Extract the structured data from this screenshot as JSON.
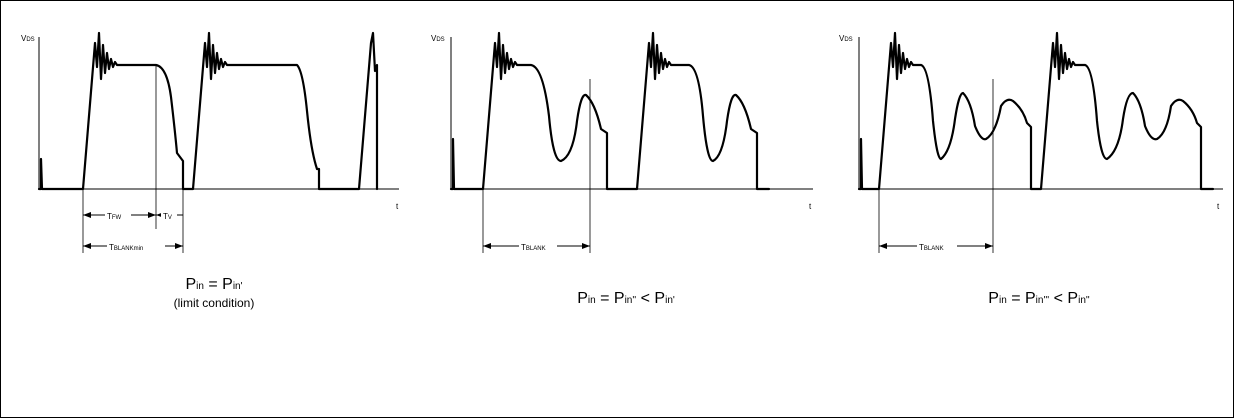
{
  "panels": [
    {
      "ylabel": {
        "main": "V",
        "sub": "DS"
      },
      "xlabel": "t",
      "dims": [
        {
          "main": "T",
          "sub": "FW"
        },
        {
          "main": "T",
          "sub": "V"
        },
        {
          "main": "T",
          "sub": "BLANKmin"
        }
      ],
      "caption": {
        "p1": "P",
        "s1": "in",
        "eq": " = ",
        "p2": "P",
        "s2": "in'",
        "lt": "",
        "p3": "",
        "s3": "",
        "note": "(limit condition)"
      }
    },
    {
      "ylabel": {
        "main": "V",
        "sub": "DS"
      },
      "xlabel": "t",
      "dims": [
        {
          "main": "T",
          "sub": "BLANK"
        }
      ],
      "caption": {
        "p1": "P",
        "s1": "in",
        "eq": " = ",
        "p2": "P",
        "s2": "in''",
        "lt": " < ",
        "p3": "P",
        "s3": "in'",
        "note": ""
      }
    },
    {
      "ylabel": {
        "main": "V",
        "sub": "DS"
      },
      "xlabel": "t",
      "dims": [
        {
          "main": "T",
          "sub": "BLANK"
        }
      ],
      "caption": {
        "p1": "P",
        "s1": "in",
        "eq": " = ",
        "p2": "P",
        "s2": "in'''",
        "lt": " < ",
        "p3": "P",
        "s3": "in''",
        "note": ""
      }
    }
  ]
}
